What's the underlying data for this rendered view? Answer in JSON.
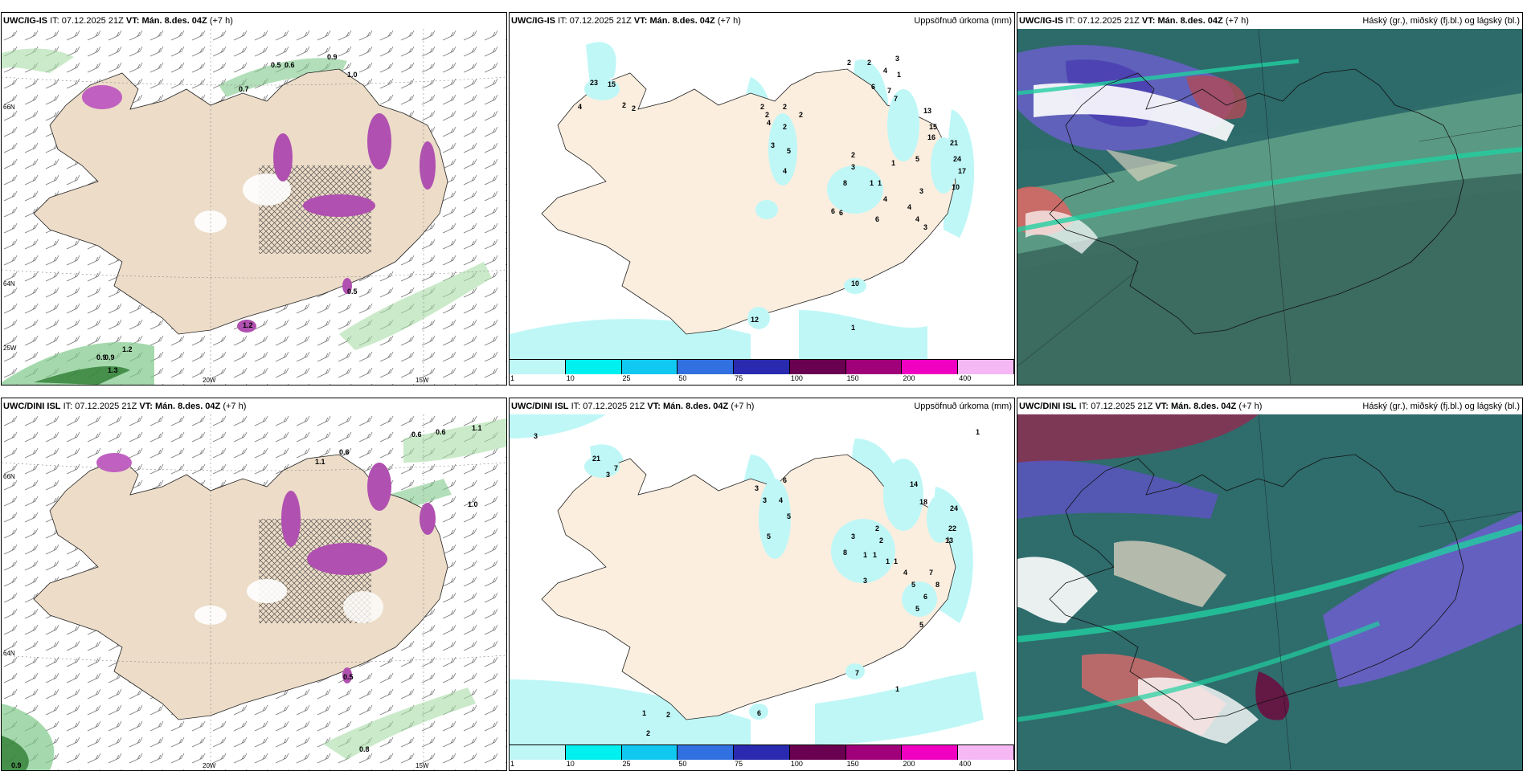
{
  "panels": [
    {
      "id": "p1",
      "model": "UWC/IG-IS",
      "it_label": "IT:",
      "it_value": "07.12.2025 21Z",
      "vt_label": "VT:",
      "vt_value": "Mán. 8.des. 04Z",
      "lead": "(+7 h)",
      "right_title": ""
    },
    {
      "id": "p2",
      "model": "UWC/IG-IS",
      "it_label": "IT:",
      "it_value": "07.12.2025 21Z",
      "vt_label": "VT:",
      "vt_value": "Mán. 8.des. 04Z",
      "lead": "(+7 h)",
      "right_title": "Uppsöfnuð úrkoma (mm)"
    },
    {
      "id": "p3",
      "model": "UWC/IG-IS",
      "it_label": "IT:",
      "it_value": "07.12.2025 21Z",
      "vt_label": "VT:",
      "vt_value": "Mán. 8.des. 04Z",
      "lead": "(+7 h)",
      "right_title": "Háský (gr.), miðský (fj.bl.) og lágský (bl.)"
    },
    {
      "id": "p4",
      "model": "UWC/DINI ISL",
      "it_label": "IT:",
      "it_value": "07.12.2025 21Z",
      "vt_label": "VT:",
      "vt_value": "Mán. 8.des. 04Z",
      "lead": "(+7 h)",
      "right_title": ""
    },
    {
      "id": "p5",
      "model": "UWC/DINI ISL",
      "it_label": "IT:",
      "it_value": "07.12.2025 21Z",
      "vt_label": "VT:",
      "vt_value": "Mán. 8.des. 04Z",
      "lead": "(+7 h)",
      "right_title": "Uppsöfnuð úrkoma (mm)"
    },
    {
      "id": "p6",
      "model": "UWC/DINI ISL",
      "it_label": "IT:",
      "it_value": "07.12.2025 21Z",
      "vt_label": "VT:",
      "vt_value": "Mán. 8.des. 04Z",
      "lead": "(+7 h)",
      "right_title": "Háský (gr.), miðský (fj.bl.) og lágský (bl.)"
    }
  ],
  "axis_labels": {
    "lon_20w": "20W",
    "lon_15w": "15W",
    "lat_66n": "66N",
    "lat_64n": "64N",
    "lat_25w": "25W"
  },
  "colorbar": {
    "colors": [
      "#bff7f7",
      "#00f0f0",
      "#10c8f0",
      "#3070e0",
      "#2a2ab0",
      "#6a0050",
      "#a0007a",
      "#f000c0",
      "#f5b8f5"
    ],
    "labels": [
      "1",
      "10",
      "25",
      "50",
      "75",
      "100",
      "150",
      "200",
      "400"
    ]
  },
  "precip_labels_top": [
    "23",
    "15",
    "4",
    "2",
    "2",
    "4",
    "2",
    "2",
    "2",
    "2",
    "7",
    "6",
    "7",
    "13",
    "15",
    "16",
    "21",
    "24",
    "17",
    "10",
    "3",
    "5",
    "8",
    "1",
    "1",
    "3",
    "3",
    "4",
    "6",
    "6",
    "6",
    "4",
    "3",
    "10",
    "12",
    "1",
    "2",
    "1",
    "2",
    "3",
    "4",
    "5",
    "4",
    "2",
    "2",
    "1",
    "4"
  ],
  "precip_labels_bottom": [
    "21",
    "3",
    "7",
    "6",
    "3",
    "3",
    "4",
    "5",
    "5",
    "14",
    "18",
    "24",
    "22",
    "13",
    "8",
    "1",
    "1",
    "3",
    "4",
    "5",
    "7",
    "8",
    "1",
    "1",
    "2",
    "2",
    "3",
    "6",
    "5",
    "7",
    "1",
    "2",
    "2",
    "1",
    "3",
    "1",
    "6",
    "5"
  ],
  "wind_labels_top": [
    "0.5",
    "0.6",
    "0.9",
    "1.0",
    "0.7",
    "1.2",
    "0.9",
    "0.9",
    "1.3",
    "0.5",
    "1.2"
  ],
  "wind_labels_bottom": [
    "0.6",
    "0.6",
    "1.1",
    "1.1",
    "0.6",
    "1.0",
    "0.9",
    "0.8",
    "0.5"
  ]
}
